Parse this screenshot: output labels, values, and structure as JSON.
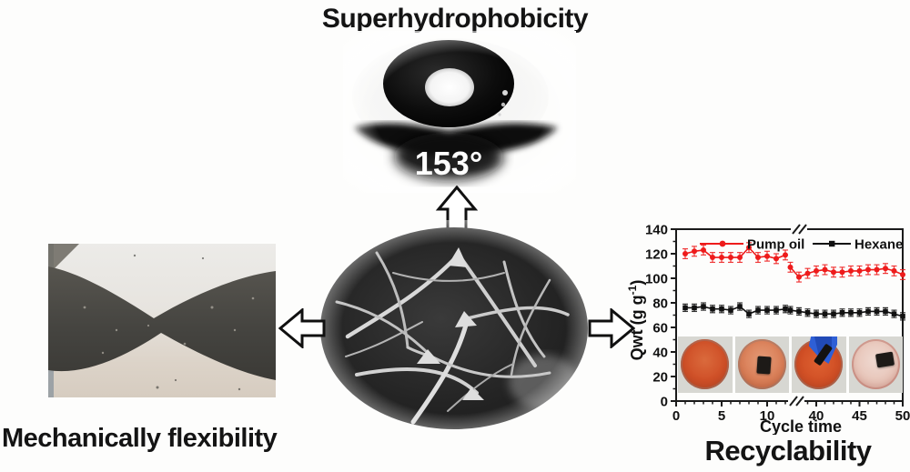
{
  "top": {
    "title": "Superhydrophobicity",
    "contact_angle": "153°"
  },
  "left": {
    "label": "Mechanically flexibility"
  },
  "right": {
    "label": "Recyclability"
  },
  "colors": {
    "pump_oil": "#ee1b1b",
    "hexane": "#111111",
    "axis": "#1a1a1a",
    "oil_dish": "#cf4f27",
    "glove_blue": "#2e5fd6"
  },
  "chart_data": {
    "type": "line",
    "title": "",
    "xlabel": "Cycle time",
    "ylabel": "Qwt (g g⁻¹)",
    "ylabel_main": "Qwt (g g",
    "ylabel_sup": "-1",
    "ylabel_close": ")",
    "ylim": [
      0,
      140
    ],
    "yticks": [
      0,
      20,
      40,
      60,
      80,
      100,
      120,
      140
    ],
    "xticks_left": [
      0,
      5,
      10
    ],
    "xticks_right": [
      40,
      45,
      50
    ],
    "axis_break": true,
    "grid": false,
    "legend_position": "top-inside",
    "series": [
      {
        "name": "Pump oil",
        "color": "#ee1b1b",
        "marker": "circle",
        "error": 4,
        "seg1_x": [
          1,
          2,
          3,
          4,
          5,
          6,
          7,
          8,
          9,
          10,
          11,
          12
        ],
        "seg1_y": [
          120,
          122,
          123,
          117,
          117,
          117,
          117,
          125,
          117,
          118,
          116,
          119
        ],
        "seg2_x": [
          37,
          38,
          39,
          40,
          41,
          42,
          43,
          44,
          45,
          46,
          47,
          48,
          49,
          50
        ],
        "seg2_y": [
          109,
          101,
          104,
          106,
          107,
          105,
          105,
          106,
          106,
          107,
          107,
          108,
          106,
          103
        ]
      },
      {
        "name": "Hexane",
        "color": "#111111",
        "marker": "square",
        "error": 3,
        "seg1_x": [
          1,
          2,
          3,
          4,
          5,
          6,
          7,
          8,
          9,
          10,
          11,
          12
        ],
        "seg1_y": [
          76,
          76,
          77,
          75,
          75,
          74,
          77,
          71,
          74,
          74,
          74,
          75
        ],
        "seg2_x": [
          37,
          38,
          39,
          40,
          41,
          42,
          43,
          44,
          45,
          46,
          47,
          48,
          49,
          50
        ],
        "seg2_y": [
          74,
          73,
          72,
          71,
          71,
          71,
          72,
          72,
          72,
          73,
          73,
          73,
          71,
          69
        ]
      }
    ],
    "inset_photos": [
      "oil-film-dish",
      "sponge-on-oil-dish",
      "glove-lifting-sponge",
      "cleaned-dish-with-sponge"
    ]
  }
}
